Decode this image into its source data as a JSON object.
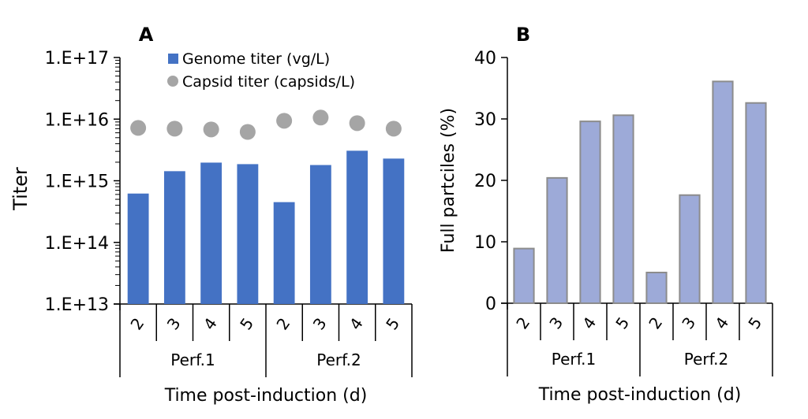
{
  "chart_data": [
    {
      "panel": "A",
      "type": "bar",
      "title": "",
      "xlabel": "Time post-induction (d)",
      "ylabel": "Titer",
      "yscale": "log",
      "ylim": [
        10000000000000.0,
        1e+17
      ],
      "yticks": [
        "1.E+13",
        "1.E+14",
        "1.E+15",
        "1.E+16",
        "1.E+17"
      ],
      "groups": [
        {
          "label": "Perf.1",
          "categories": [
            "2",
            "3",
            "4",
            "5"
          ]
        },
        {
          "label": "Perf.2",
          "categories": [
            "2",
            "3",
            "4",
            "5"
          ]
        }
      ],
      "series": [
        {
          "name": "Genome titer (vg/L)",
          "kind": "bar",
          "color": "#4472C4",
          "values": [
            620000000000000.0,
            1430000000000000.0,
            1970000000000000.0,
            1860000000000000.0,
            450000000000000.0,
            1800000000000000.0,
            3070000000000000.0,
            2290000000000000.0
          ]
        },
        {
          "name": "Capsid titer (capsids/L)",
          "kind": "scatter",
          "color": "#A5A5A5",
          "values": [
            7200000000000000.0,
            7000000000000000.0,
            6800000000000000.0,
            6200000000000000.0,
            9400000000000000.0,
            1.06e+16,
            8600000000000000.0,
            7000000000000000.0
          ]
        }
      ],
      "legend": "top-center"
    },
    {
      "panel": "B",
      "type": "bar",
      "title": "",
      "xlabel": "Time post-induction (d)",
      "ylabel": "Full partciles (%)",
      "ylim": [
        0,
        40
      ],
      "yticks": [
        "0",
        "10",
        "20",
        "30",
        "40"
      ],
      "groups": [
        {
          "label": "Perf.1",
          "categories": [
            "2",
            "3",
            "4",
            "5"
          ]
        },
        {
          "label": "Perf.2",
          "categories": [
            "2",
            "3",
            "4",
            "5"
          ]
        }
      ],
      "series": [
        {
          "name": "Full particles",
          "color": "#9DAAD8",
          "edge": "#8C8C8C",
          "values": [
            8.9,
            20.4,
            29.6,
            30.6,
            5.0,
            17.6,
            36.1,
            32.6
          ]
        }
      ]
    }
  ]
}
